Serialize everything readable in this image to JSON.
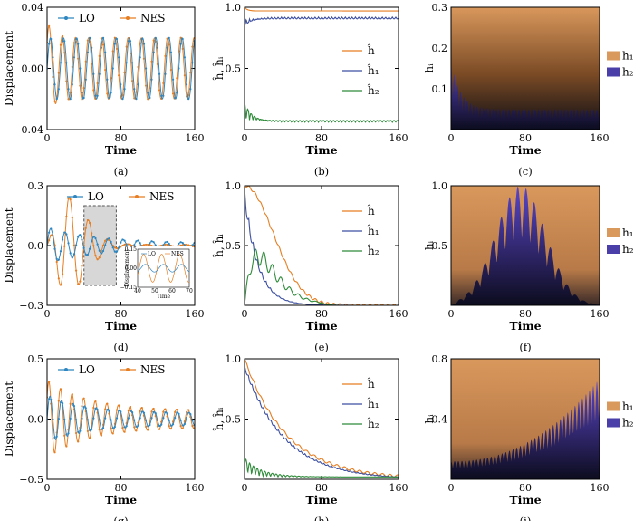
{
  "colors": {
    "lo": "#2e86c1",
    "nes": "#e67e22",
    "h": "#e67e22",
    "h1": "#3c4fa0",
    "h2": "#2e8b3a",
    "fill_h1": "#d9985c",
    "fill_h2": "#4a3fa8"
  },
  "chart_data": [
    {
      "id": "a",
      "caption": "(a)",
      "type": "line",
      "xlabel": "Time",
      "ylabel": "Displacement",
      "xlim": [
        0,
        160
      ],
      "ylim": [
        -0.04,
        0.04
      ],
      "xticks": [
        0,
        80,
        160
      ],
      "yticks": [
        -0.04,
        0.0,
        0.04
      ],
      "ytick_labels": [
        "−0.04",
        "0.00",
        "0.04"
      ],
      "series": [
        {
          "name": "LO",
          "amp0": 0.02,
          "amp1": 0.02,
          "freq": 0.22
        },
        {
          "name": "NES",
          "amp0": 0.03,
          "amp1": 0.02,
          "freq": 0.22
        }
      ],
      "legend": [
        "LO",
        "NES"
      ]
    },
    {
      "id": "b",
      "caption": "(b)",
      "type": "line",
      "xlabel": "Time",
      "ylabel": "ĥ, ĥᵢ",
      "xlim": [
        0,
        160
      ],
      "ylim": [
        0,
        1
      ],
      "xticks": [
        0,
        80,
        160
      ],
      "yticks": [
        0.5,
        1.0
      ],
      "ytick_labels": [
        "0.5",
        "1.0"
      ],
      "series": [
        {
          "name": "ĥ",
          "start": 1.0,
          "end": 0.97
        },
        {
          "name": "ĥ₁",
          "start": 0.85,
          "end": 0.92
        },
        {
          "name": "ĥ₂",
          "start": 0.22,
          "end": 0.06
        }
      ],
      "legend": [
        "ĥ",
        "ĥ₁",
        "ĥ₂"
      ]
    },
    {
      "id": "c",
      "caption": "(c)",
      "type": "area",
      "xlabel": "Time",
      "ylabel": "hᵢ",
      "xlim": [
        0,
        160
      ],
      "ylim": [
        0,
        0.3
      ],
      "xticks": [
        0,
        80,
        160
      ],
      "yticks": [
        0.1,
        0.2,
        0.3
      ],
      "ytick_labels": [
        "0.1",
        "0.2",
        "0.3"
      ],
      "series": [
        {
          "name": "h₁",
          "level": 0.3
        },
        {
          "name": "h₂",
          "peak": 0.17,
          "end": 0.05
        }
      ],
      "legend": [
        "h₁",
        "h₂"
      ]
    },
    {
      "id": "d",
      "caption": "(d)",
      "type": "line",
      "xlabel": "Time",
      "ylabel": "Displacement",
      "xlim": [
        0,
        160
      ],
      "ylim": [
        -0.3,
        0.3
      ],
      "xticks": [
        0,
        80,
        160
      ],
      "yticks": [
        -0.3,
        0.0,
        0.3
      ],
      "ytick_labels": [
        "−0.3",
        "0.0",
        "0.3"
      ],
      "series": [
        {
          "name": "LO",
          "amp0": 0.08,
          "freq": 0.2
        },
        {
          "name": "NES",
          "amp0": 0.25,
          "freq": 0.15
        }
      ],
      "legend": [
        "LO",
        "NES"
      ],
      "highlight_x": [
        40,
        75
      ],
      "inset": {
        "xlim": [
          40,
          70
        ],
        "ylim": [
          -0.15,
          0.15
        ],
        "xticks": [
          40,
          50,
          60,
          70
        ],
        "yticks": [
          -0.15,
          0.0,
          0.15
        ],
        "ytick_labels": [
          "−0.15",
          "0.00",
          "0.15"
        ],
        "xlabel": "Time",
        "ylabel": "Displacement",
        "legend": [
          "LO",
          "NES"
        ]
      }
    },
    {
      "id": "e",
      "caption": "(e)",
      "type": "line",
      "xlabel": "Time",
      "ylabel": "ĥ, ĥᵢ",
      "xlim": [
        0,
        160
      ],
      "ylim": [
        0,
        1
      ],
      "xticks": [
        0,
        80,
        160
      ],
      "yticks": [
        0.5,
        1.0
      ],
      "ytick_labels": [
        "0.5",
        "1.0"
      ],
      "series": [
        {
          "name": "ĥ",
          "start": 1.0,
          "end": 0.0
        },
        {
          "name": "ĥ₁",
          "start": 1.0,
          "end": 0.0
        },
        {
          "name": "ĥ₂",
          "peak": 0.45,
          "end": 0.0
        }
      ],
      "legend": [
        "ĥ",
        "ĥ₁",
        "ĥ₂"
      ]
    },
    {
      "id": "f",
      "caption": "(f)",
      "type": "area",
      "xlabel": "Time",
      "ylabel": "hᵢ",
      "xlim": [
        0,
        160
      ],
      "ylim": [
        0,
        1.0
      ],
      "xticks": [
        0,
        80,
        160
      ],
      "yticks": [
        0.5,
        1.0
      ],
      "ytick_labels": [
        "0.5",
        "1.0"
      ],
      "series": [
        {
          "name": "h₁",
          "level": 1.0
        },
        {
          "name": "h₂",
          "peak": 1.0,
          "peak_x": 75
        }
      ],
      "legend": [
        "h₁",
        "h₂"
      ]
    },
    {
      "id": "g",
      "caption": "(g)",
      "type": "line",
      "xlabel": "Time",
      "ylabel": "Displacement",
      "xlim": [
        0,
        160
      ],
      "ylim": [
        -0.5,
        0.5
      ],
      "xticks": [
        0,
        80,
        160
      ],
      "yticks": [
        -0.5,
        0.0,
        0.5
      ],
      "ytick_labels": [
        "−0.5",
        "0.0",
        "0.5"
      ],
      "series": [
        {
          "name": "LO",
          "amp0": 0.2,
          "amp1": 0.05,
          "freq": 0.25
        },
        {
          "name": "NES",
          "amp0": 0.32,
          "amp1": 0.07,
          "freq": 0.25
        }
      ],
      "legend": [
        "LO",
        "NES"
      ]
    },
    {
      "id": "h",
      "caption": "(h)",
      "type": "line",
      "xlabel": "Time",
      "ylabel": "ĥ, ĥᵢ",
      "xlim": [
        0,
        160
      ],
      "ylim": [
        0,
        1
      ],
      "xticks": [
        0,
        80,
        160
      ],
      "yticks": [
        0.5,
        1.0
      ],
      "ytick_labels": [
        "0.5",
        "1.0"
      ],
      "series": [
        {
          "name": "ĥ",
          "start": 1.0,
          "end": 0.03
        },
        {
          "name": "ĥ₁",
          "start": 0.95,
          "end": 0.02
        },
        {
          "name": "ĥ₂",
          "peak": 0.15,
          "end": 0.02
        }
      ],
      "legend": [
        "ĥ",
        "ĥ₁",
        "ĥ₂"
      ]
    },
    {
      "id": "i",
      "caption": "(i)",
      "type": "area",
      "xlabel": "Time",
      "ylabel": "hᵢ",
      "xlim": [
        0,
        160
      ],
      "ylim": [
        0,
        0.8
      ],
      "xticks": [
        0,
        80,
        160
      ],
      "yticks": [
        0.4,
        0.8
      ],
      "ytick_labels": [
        "0.4",
        "0.8"
      ],
      "series": [
        {
          "name": "h₁",
          "level": 0.8
        },
        {
          "name": "h₂",
          "start": 0.2,
          "end": 0.68
        }
      ],
      "legend": [
        "h₁",
        "h₂"
      ]
    }
  ]
}
